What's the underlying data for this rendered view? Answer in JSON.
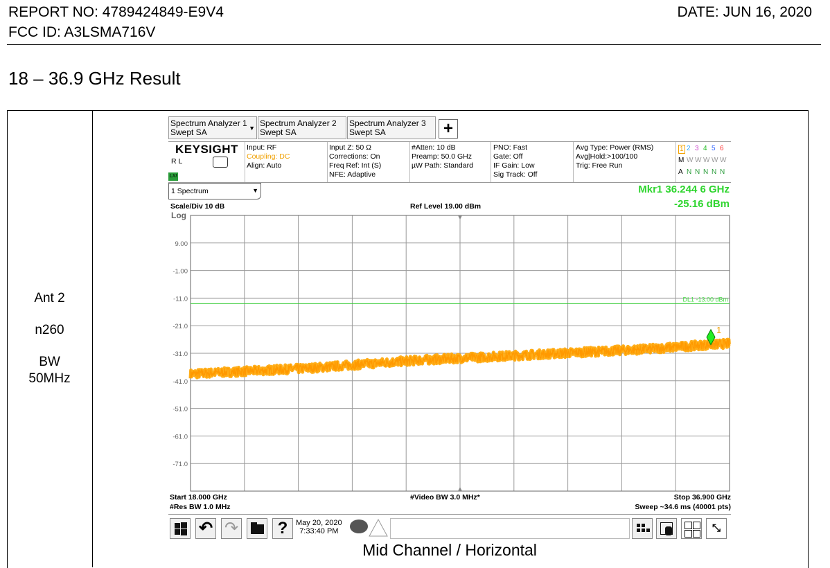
{
  "header": {
    "report_no": "REPORT NO: 4789424849-E9V4",
    "fcc_id": "FCC ID: A3LSMA716V",
    "date": "DATE: JUN 16, 2020"
  },
  "section_title": "18 – 36.9 GHz Result",
  "config": {
    "antenna": "Ant 2",
    "band": "n260",
    "bw_line1": "BW",
    "bw_line2": "50MHz"
  },
  "analyzer": {
    "tabs": [
      {
        "line1": "Spectrum Analyzer 1",
        "line2": "Swept SA"
      },
      {
        "line1": "Spectrum Analyzer 2",
        "line2": "Swept SA"
      },
      {
        "line1": "Spectrum Analyzer 3",
        "line2": "Swept SA"
      }
    ],
    "add_tab": "+",
    "brand": "KEYSIGHT",
    "rl": "R L",
    "lxi": "LXI",
    "info": {
      "input": "Input: RF",
      "coupling": "Coupling: DC",
      "align": "Align: Auto",
      "input_z": "Input Z: 50 Ω",
      "corrections": "Corrections: On",
      "freq_ref": "Freq Ref: Int (S)",
      "nfe": "NFE: Adaptive",
      "atten": "#Atten: 10 dB",
      "preamp": "Preamp: 50.0 GHz",
      "uw_path": "µW Path: Standard",
      "pno": "PNO: Fast",
      "gate": "Gate: Off",
      "if_gain": "IF Gain: Low",
      "sig_track": "Sig Track: Off",
      "avg_type": "Avg Type: Power (RMS)",
      "avg_hold": "Avg|Hold:>100/100",
      "trig": "Trig: Free Run"
    },
    "traces": {
      "numbers": [
        "1",
        "2",
        "3",
        "4",
        "5",
        "6"
      ],
      "colors": [
        "#f4a300",
        "#33aaff",
        "#cc44cc",
        "#22bb22",
        "#3366ff",
        "#ff3333"
      ],
      "types": [
        "M",
        "W",
        "W",
        "W",
        "W",
        "W"
      ],
      "detectors": [
        "A",
        "N",
        "N",
        "N",
        "N",
        "N"
      ]
    },
    "view_select": "1 Spectrum",
    "marker": {
      "label": "Mkr1  36.244 6 GHz",
      "amplitude": "-25.16 dBm",
      "number": "1"
    },
    "scale_div": "Scale/Div 10 dB",
    "log": "Log",
    "ref_level": "Ref Level 19.00 dBm",
    "display_line_label": "DL1 -13.00 dBm",
    "footer": {
      "start": "Start 18.000 GHz",
      "res_bw": "#Res BW 1.0 MHz",
      "video_bw": "#Video BW 3.0 MHz*",
      "stop": "Stop 36.900 GHz",
      "sweep": "Sweep ~34.6 ms (40001 pts)"
    },
    "clock": {
      "date": "May 20, 2020",
      "time": "7:33:40 PM"
    }
  },
  "caption": "Mid Channel / Horizontal",
  "chart_data": {
    "type": "line",
    "title": "",
    "xlabel": "",
    "ylabel": "",
    "x_unit": "GHz",
    "y_unit": "dBm",
    "xlim": [
      18.0,
      36.9
    ],
    "ylim": [
      -81.0,
      19.0
    ],
    "y_ticks": [
      "9.00",
      "-1.00",
      "-11.0",
      "-21.0",
      "-31.0",
      "-41.0",
      "-51.0",
      "-61.0",
      "-71.0"
    ],
    "display_line": -13.0,
    "marker": {
      "x": 36.2446,
      "y": -25.16
    },
    "series": [
      {
        "color": "#ffa500",
        "x": [
          18.0,
          20.0,
          22.0,
          24.0,
          26.0,
          28.0,
          30.0,
          32.0,
          34.0,
          36.0,
          36.9
        ],
        "y": [
          -38.5,
          -37.5,
          -36.5,
          -35.0,
          -33.5,
          -32.5,
          -31.5,
          -30.5,
          -29.5,
          -28.0,
          -27.5
        ]
      }
    ],
    "grid": true
  }
}
